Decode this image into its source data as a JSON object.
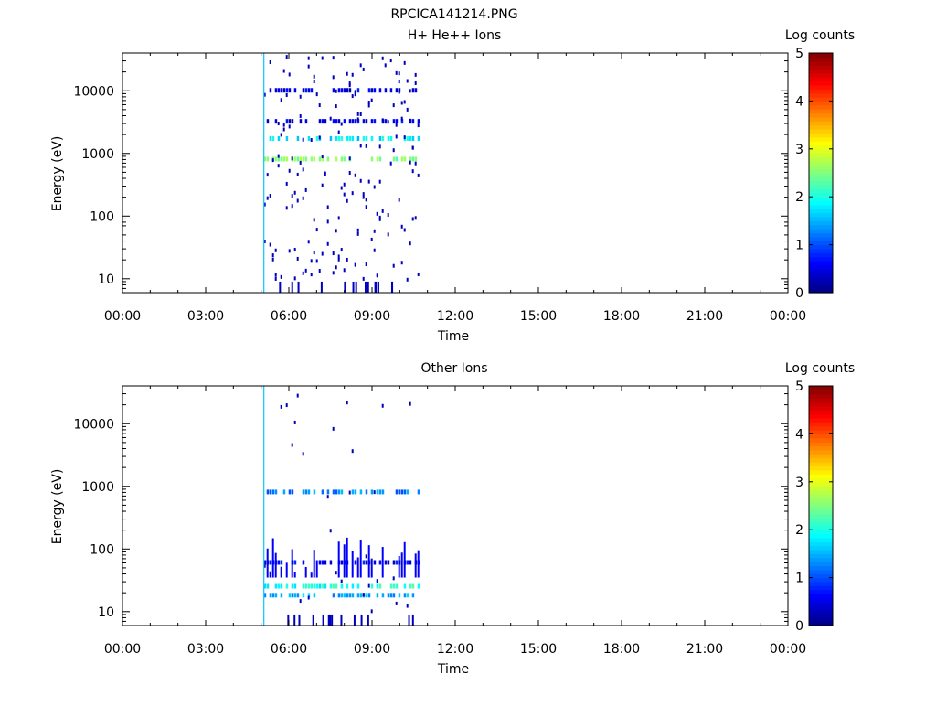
{
  "figure": {
    "title": "RPCICA141214.PNG"
  },
  "panels": [
    {
      "id": "panel-top",
      "title": "H+ He++ Ions",
      "xlabel": "Time",
      "ylabel": "Energy (eV)",
      "colorbar_label": "Log counts"
    },
    {
      "id": "panel-bottom",
      "title": "Other Ions",
      "xlabel": "Time",
      "ylabel": "Energy (eV)",
      "colorbar_label": "Log counts"
    }
  ],
  "chart_data": [
    {
      "type": "heatmap",
      "title": "H+ He++ Ions",
      "xlabel": "Time",
      "ylabel": "Energy (eV)",
      "x_ticks": [
        "00:00",
        "03:00",
        "06:00",
        "09:00",
        "12:00",
        "15:00",
        "18:00",
        "21:00",
        "00:00"
      ],
      "xlim_hours": [
        0,
        24
      ],
      "y_scale": "log",
      "y_ticks": [
        10,
        100,
        1000,
        10000
      ],
      "y_tick_labels": [
        "10",
        "100",
        "1000",
        "10000"
      ],
      "ylim": [
        6,
        40000
      ],
      "colorbar": {
        "label": "Log counts",
        "range": [
          0,
          5
        ],
        "ticks": [
          "0",
          "1",
          "2",
          "3",
          "4",
          "5"
        ],
        "colormap": "jet"
      },
      "data_window_hours": [
        5.1,
        10.8
      ],
      "bands": [
        {
          "energy_eV": 1700,
          "log_counts": 1.8
        },
        {
          "energy_eV": 800,
          "log_counts": 2.5
        },
        {
          "energy_eV": 3200,
          "log_counts": 0.5
        },
        {
          "energy_eV": 10000,
          "log_counts": 0.5
        }
      ],
      "vertical_line_hours": 5.1
    },
    {
      "type": "heatmap",
      "title": "Other Ions",
      "xlabel": "Time",
      "ylabel": "Energy (eV)",
      "x_ticks": [
        "00:00",
        "03:00",
        "06:00",
        "09:00",
        "12:00",
        "15:00",
        "18:00",
        "21:00",
        "00:00"
      ],
      "xlim_hours": [
        0,
        24
      ],
      "y_scale": "log",
      "y_ticks": [
        10,
        100,
        1000,
        10000
      ],
      "y_tick_labels": [
        "10",
        "100",
        "1000",
        "10000"
      ],
      "ylim": [
        6,
        40000
      ],
      "colorbar": {
        "label": "Log counts",
        "range": [
          0,
          5
        ],
        "ticks": [
          "0",
          "1",
          "2",
          "3",
          "4",
          "5"
        ],
        "colormap": "jet"
      },
      "data_window_hours": [
        5.1,
        10.8
      ],
      "bands": [
        {
          "energy_eV": 800,
          "log_counts": 1.3
        },
        {
          "energy_eV": 25,
          "log_counts": 2.0
        },
        {
          "energy_eV": 18,
          "log_counts": 1.5
        },
        {
          "energy_eV": 60,
          "log_counts": 0.6
        }
      ],
      "vertical_line_hours": 5.1
    }
  ]
}
